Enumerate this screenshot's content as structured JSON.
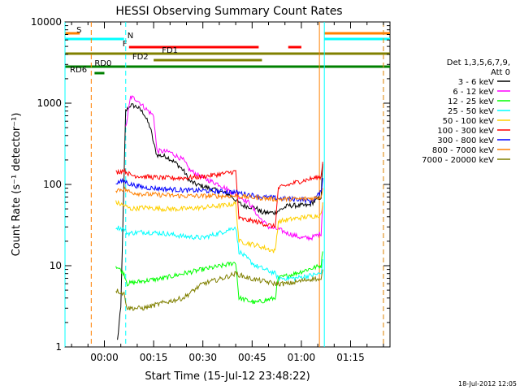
{
  "chart_data": {
    "type": "line",
    "title": "HESSI Observing Summary Count Rates",
    "xlabel": "Start Time (15-Jul-12 23:48:22)",
    "ylabel": "Count Rate (s⁻¹ detector⁻¹)",
    "yscale": "log",
    "ylim": [
      1,
      10000
    ],
    "xlim_minutes": [
      -12,
      87
    ],
    "x_ticks": [
      {
        "m": 0,
        "label": "00:00"
      },
      {
        "m": 15,
        "label": "00:15"
      },
      {
        "m": 30,
        "label": "00:30"
      },
      {
        "m": 45,
        "label": "00:45"
      },
      {
        "m": 60,
        "label": "01:00"
      },
      {
        "m": 75,
        "label": "01:15"
      }
    ],
    "y_ticks": [
      {
        "v": 1,
        "label": "1"
      },
      {
        "v": 10,
        "label": "10"
      },
      {
        "v": 100,
        "label": "100"
      },
      {
        "v": 1000,
        "label": "1000"
      },
      {
        "v": 10000,
        "label": "10000"
      }
    ],
    "legend_title": [
      "Det 1,3,5,6,7,9,",
      "Att 0"
    ],
    "legend_position": "right",
    "series": [
      {
        "name": "3 - 6 keV",
        "color": "#000000",
        "points": [
          [
            4,
            1.2
          ],
          [
            4.5,
            2
          ],
          [
            5,
            3
          ],
          [
            6.5,
            800
          ],
          [
            8,
            950
          ],
          [
            10,
            900
          ],
          [
            12,
            750
          ],
          [
            14,
            500
          ],
          [
            15,
            320
          ],
          [
            16,
            230
          ],
          [
            19,
            220
          ],
          [
            22,
            180
          ],
          [
            24,
            150
          ],
          [
            26,
            110
          ],
          [
            28,
            100
          ],
          [
            32,
            90
          ],
          [
            38,
            75
          ],
          [
            42,
            55
          ],
          [
            46,
            52
          ],
          [
            48,
            45
          ],
          [
            52,
            45
          ],
          [
            56,
            55
          ],
          [
            59,
            55
          ],
          [
            62,
            55
          ],
          [
            66,
            70
          ],
          [
            66.5,
            180
          ]
        ]
      },
      {
        "name": "6 - 12 keV",
        "color": "#ff00ff",
        "points": [
          [
            6.5,
            500
          ],
          [
            8,
            1200
          ],
          [
            10,
            1100
          ],
          [
            12,
            900
          ],
          [
            15,
            700
          ],
          [
            16,
            260
          ],
          [
            20,
            250
          ],
          [
            24,
            200
          ],
          [
            26,
            150
          ],
          [
            30,
            120
          ],
          [
            35,
            100
          ],
          [
            40,
            75
          ],
          [
            44,
            60
          ],
          [
            47,
            40
          ],
          [
            50,
            30
          ],
          [
            53,
            28
          ],
          [
            56,
            25
          ],
          [
            60,
            22
          ],
          [
            63,
            22
          ],
          [
            66,
            25
          ],
          [
            66.5,
            60
          ]
        ]
      },
      {
        "name": "12 - 25 keV",
        "color": "#00ff00",
        "points": [
          [
            3.5,
            10
          ],
          [
            6,
            8
          ],
          [
            7,
            6
          ],
          [
            12,
            6.5
          ],
          [
            18,
            7
          ],
          [
            24,
            8
          ],
          [
            30,
            9
          ],
          [
            36,
            10
          ],
          [
            40,
            11
          ],
          [
            41,
            4
          ],
          [
            46,
            3.5
          ],
          [
            52,
            4
          ],
          [
            53,
            7
          ],
          [
            58,
            8
          ],
          [
            62,
            9
          ],
          [
            66,
            10
          ],
          [
            66.5,
            15
          ]
        ]
      },
      {
        "name": "25 - 50 keV",
        "color": "#00ffff",
        "points": [
          [
            3.5,
            30
          ],
          [
            6,
            28
          ],
          [
            7,
            25
          ],
          [
            12,
            26
          ],
          [
            18,
            25
          ],
          [
            24,
            23
          ],
          [
            30,
            22
          ],
          [
            36,
            26
          ],
          [
            40,
            30
          ],
          [
            41,
            15
          ],
          [
            46,
            10
          ],
          [
            52,
            8
          ],
          [
            53,
            7
          ],
          [
            58,
            7
          ],
          [
            62,
            7.5
          ],
          [
            66,
            8
          ],
          [
            66.5,
            12
          ]
        ]
      },
      {
        "name": "50 - 100 keV",
        "color": "#ffd000",
        "points": [
          [
            3.5,
            60
          ],
          [
            6,
            55
          ],
          [
            8,
            50
          ],
          [
            12,
            52
          ],
          [
            18,
            50
          ],
          [
            24,
            50
          ],
          [
            30,
            52
          ],
          [
            36,
            55
          ],
          [
            40,
            58
          ],
          [
            41,
            20
          ],
          [
            46,
            18
          ],
          [
            52,
            15
          ],
          [
            53,
            35
          ],
          [
            58,
            38
          ],
          [
            62,
            40
          ],
          [
            66,
            42
          ],
          [
            66.5,
            60
          ]
        ]
      },
      {
        "name": "100 - 300 keV",
        "color": "#ff0000",
        "points": [
          [
            3.5,
            140
          ],
          [
            6,
            150
          ],
          [
            8,
            130
          ],
          [
            12,
            125
          ],
          [
            18,
            120
          ],
          [
            24,
            120
          ],
          [
            30,
            125
          ],
          [
            36,
            135
          ],
          [
            40,
            145
          ],
          [
            41,
            38
          ],
          [
            46,
            35
          ],
          [
            52,
            30
          ],
          [
            53,
            90
          ],
          [
            58,
            105
          ],
          [
            62,
            115
          ],
          [
            66,
            125
          ],
          [
            66.5,
            190
          ]
        ]
      },
      {
        "name": "300 - 800 keV",
        "color": "#0000ff",
        "points": [
          [
            3.5,
            105
          ],
          [
            6,
            110
          ],
          [
            8,
            100
          ],
          [
            12,
            92
          ],
          [
            18,
            88
          ],
          [
            24,
            85
          ],
          [
            30,
            84
          ],
          [
            36,
            82
          ],
          [
            40,
            80
          ],
          [
            44,
            75
          ],
          [
            48,
            70
          ],
          [
            52,
            68
          ],
          [
            56,
            66
          ],
          [
            60,
            66
          ],
          [
            63,
            62
          ],
          [
            66,
            80
          ],
          [
            66.5,
            120
          ]
        ]
      },
      {
        "name": "800 - 7000 keV",
        "color": "#ff8000",
        "points": [
          [
            3.5,
            85
          ],
          [
            6,
            88
          ],
          [
            8,
            80
          ],
          [
            12,
            76
          ],
          [
            18,
            74
          ],
          [
            24,
            72
          ],
          [
            30,
            72
          ],
          [
            36,
            72
          ],
          [
            40,
            72
          ],
          [
            44,
            70
          ],
          [
            48,
            68
          ],
          [
            52,
            66
          ],
          [
            56,
            66
          ],
          [
            60,
            66
          ],
          [
            64,
            68
          ],
          [
            66,
            70
          ],
          [
            66.5,
            90
          ]
        ]
      },
      {
        "name": "7000 - 20000 keV",
        "color": "#808000",
        "points": [
          [
            3.5,
            5
          ],
          [
            6,
            4.5
          ],
          [
            7,
            3
          ],
          [
            12,
            3
          ],
          [
            18,
            3.5
          ],
          [
            24,
            4
          ],
          [
            30,
            6
          ],
          [
            36,
            7
          ],
          [
            40,
            8
          ],
          [
            44,
            7
          ],
          [
            48,
            6.5
          ],
          [
            52,
            6
          ],
          [
            56,
            6
          ],
          [
            60,
            6.5
          ],
          [
            64,
            7
          ],
          [
            66,
            6.5
          ],
          [
            66.5,
            9
          ]
        ]
      }
    ],
    "flag_bars": [
      {
        "label": "S",
        "color": "#ff8000",
        "segments": [
          [
            -12,
            -7.5
          ],
          [
            67,
            87
          ]
        ]
      },
      {
        "label": "N",
        "color": "#00ffff",
        "segments": [
          [
            -12,
            6
          ],
          [
            67,
            87
          ]
        ]
      },
      {
        "label": "F",
        "color": "#ff0000",
        "segments": [
          [
            7.5,
            47
          ],
          [
            56,
            60
          ]
        ]
      },
      {
        "label": "FD1",
        "color": "#808000",
        "segments": [
          [
            -12,
            87
          ]
        ]
      },
      {
        "label": "FD2",
        "color": "#808000",
        "segments": [
          [
            15,
            48
          ]
        ]
      },
      {
        "label": "RD0",
        "color": "#008000",
        "segments": [
          [
            -12,
            87
          ]
        ]
      },
      {
        "label": "RD6",
        "color": "#008000",
        "segments": [
          [
            -3,
            0
          ]
        ]
      }
    ],
    "vertical_markers": [
      {
        "m": -12,
        "color": "#00ffff",
        "style": "solid"
      },
      {
        "m": -4,
        "color": "#ff8000",
        "style": "dashed"
      },
      {
        "m": 6.5,
        "color": "#00ffff",
        "style": "dashed"
      },
      {
        "m": 65.5,
        "color": "#ff8000",
        "style": "solid"
      },
      {
        "m": 67,
        "color": "#00ffff",
        "style": "solid"
      },
      {
        "m": 85,
        "color": "#00ffff",
        "style": "dashed"
      },
      {
        "m": 85,
        "color": "#ff8000",
        "style": "dashed"
      }
    ]
  },
  "footer": {
    "date_stamp": "18-Jul-2012 12:05"
  }
}
